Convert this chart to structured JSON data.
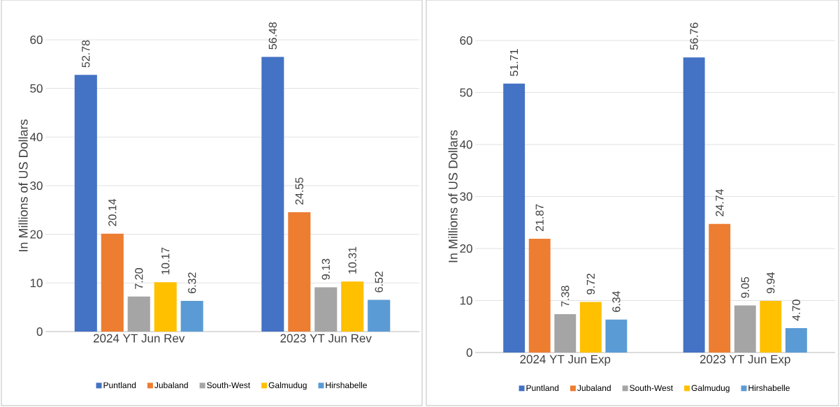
{
  "chart_data": [
    {
      "type": "bar",
      "ylabel": "In Millions of US Dollars",
      "categories": [
        "2024 YT Jun Rev",
        "2023 YT Jun Rev"
      ],
      "ylim": [
        0,
        60
      ],
      "yticks": [
        0,
        10,
        20,
        30,
        40,
        50,
        60
      ],
      "grid": "y",
      "legend": "bottom",
      "series": [
        {
          "name": "Puntland",
          "color": "#4472c4",
          "values": [
            52.78,
            56.48
          ],
          "value_labels": [
            "52.78",
            "56.48"
          ]
        },
        {
          "name": "Jubaland",
          "color": "#ed7d31",
          "values": [
            20.14,
            24.55
          ],
          "value_labels": [
            "20.14",
            "24.55"
          ]
        },
        {
          "name": "South-West",
          "color": "#a5a5a5",
          "values": [
            7.2,
            9.13
          ],
          "value_labels": [
            "7.20",
            "9.13"
          ]
        },
        {
          "name": "Galmudug",
          "color": "#ffc000",
          "values": [
            10.17,
            10.31
          ],
          "value_labels": [
            "10.17",
            "10.31"
          ]
        },
        {
          "name": "Hirshabelle",
          "color": "#5b9bd5",
          "values": [
            6.32,
            6.52
          ],
          "value_labels": [
            "6.32",
            "6.52"
          ]
        }
      ]
    },
    {
      "type": "bar",
      "ylabel": "In Millions of US Dollars",
      "categories": [
        "2024 YT Jun Exp",
        "2023 YT Jun Exp"
      ],
      "ylim": [
        0,
        60
      ],
      "yticks": [
        0,
        10,
        20,
        30,
        40,
        50,
        60
      ],
      "grid": "y",
      "legend": "bottom",
      "series": [
        {
          "name": "Puntland",
          "color": "#4472c4",
          "values": [
            51.71,
            56.76
          ],
          "value_labels": [
            "51.71",
            "56.76"
          ]
        },
        {
          "name": "Jubaland",
          "color": "#ed7d31",
          "values": [
            21.87,
            24.74
          ],
          "value_labels": [
            "21.87",
            "24.74"
          ]
        },
        {
          "name": "South-West",
          "color": "#a5a5a5",
          "values": [
            7.38,
            9.05
          ],
          "value_labels": [
            "7.38",
            "9.05"
          ]
        },
        {
          "name": "Galmudug",
          "color": "#ffc000",
          "values": [
            9.72,
            9.94
          ],
          "value_labels": [
            "9.72",
            "9.94"
          ]
        },
        {
          "name": "Hirshabelle",
          "color": "#5b9bd5",
          "values": [
            6.34,
            4.7
          ],
          "value_labels": [
            "6.34",
            "4.70"
          ]
        }
      ]
    }
  ]
}
